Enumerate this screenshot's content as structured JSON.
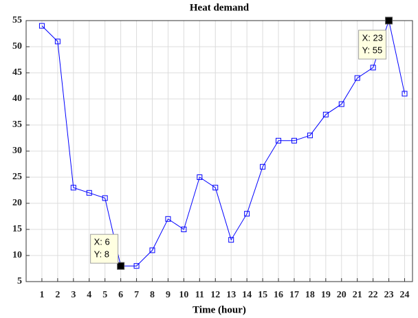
{
  "chart_data": {
    "type": "line",
    "title": "Heat demand",
    "xlabel": "Time (hour)",
    "x": [
      1,
      2,
      3,
      4,
      5,
      6,
      7,
      8,
      9,
      10,
      11,
      12,
      13,
      14,
      15,
      16,
      17,
      18,
      19,
      20,
      21,
      22,
      23,
      24
    ],
    "series": [
      {
        "color": "#0000ff",
        "values": [
          54,
          51,
          23,
          22,
          21,
          8,
          8,
          11,
          17,
          15,
          25,
          23,
          13,
          18,
          27,
          32,
          32,
          33,
          37,
          39,
          44,
          46,
          55,
          41
        ]
      }
    ],
    "xlim": [
      0,
      24.5
    ],
    "xticks": [
      1,
      2,
      3,
      4,
      5,
      6,
      7,
      8,
      9,
      10,
      11,
      12,
      13,
      14,
      15,
      16,
      17,
      18,
      19,
      20,
      21,
      22,
      23,
      24
    ],
    "ylim": [
      5,
      55
    ],
    "yticks": [
      5,
      10,
      15,
      20,
      25,
      30,
      35,
      40,
      45,
      50,
      55
    ],
    "grid": true,
    "annotations": [
      {
        "x": 6,
        "y": 8,
        "lines": [
          "X: 6",
          "Y: 8"
        ]
      },
      {
        "x": 23,
        "y": 55,
        "lines": [
          "X: 23",
          "Y: 55"
        ]
      }
    ]
  }
}
